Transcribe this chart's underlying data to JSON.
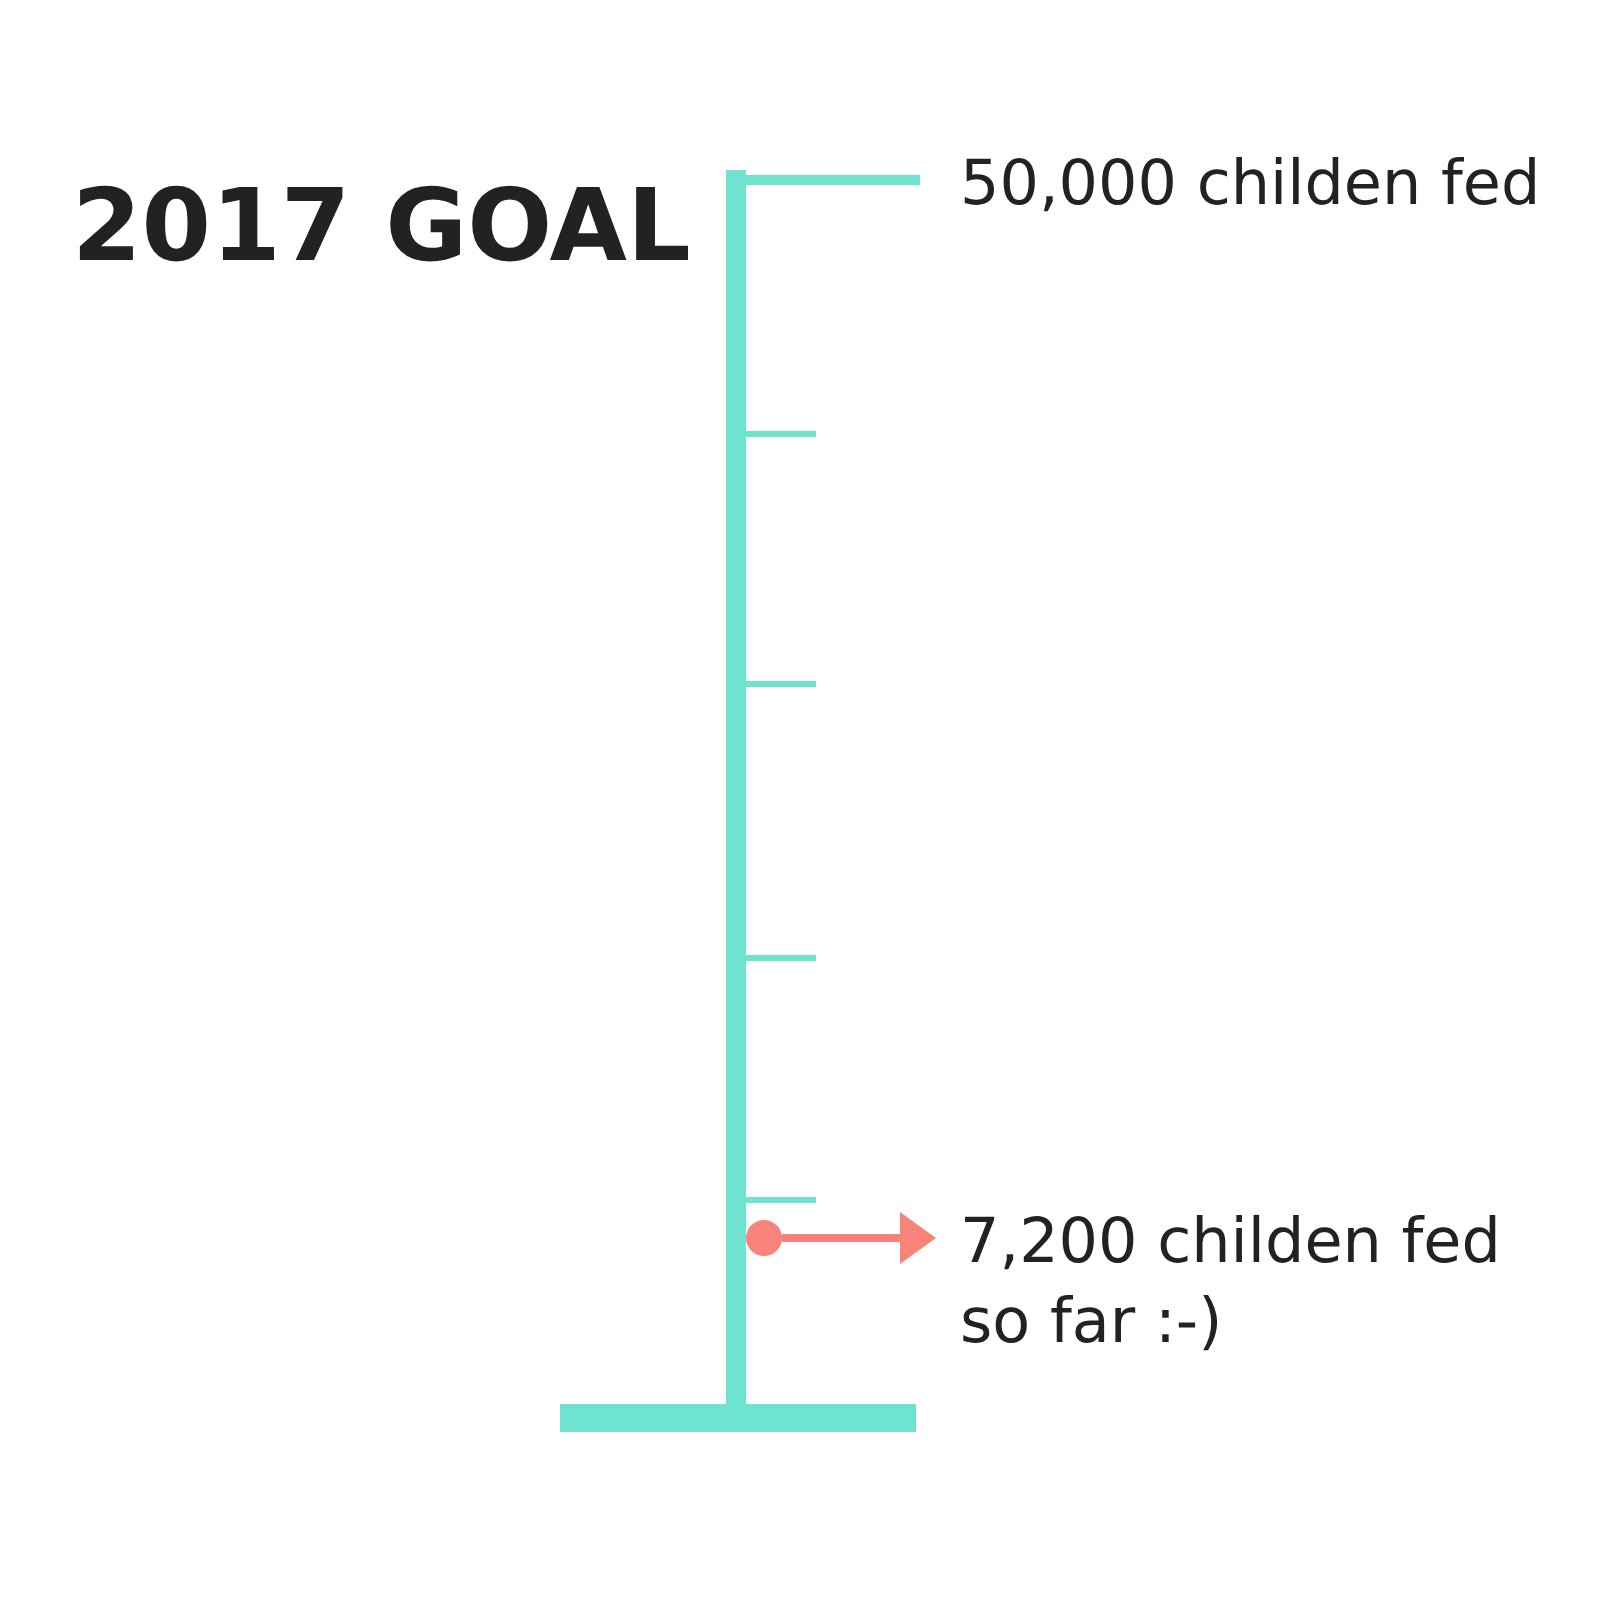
{
  "chart_data": {
    "type": "other",
    "title": "2017 GOAL",
    "categories": [
      null,
      null
    ],
    "values": [
      50000,
      7200
    ],
    "colors": [
      "#6ee3cf",
      "#f8837a"
    ],
    "value_labels": [
      "50,000 childen fed",
      "7,200 childen fed so far :-)"
    ]
  }
}
